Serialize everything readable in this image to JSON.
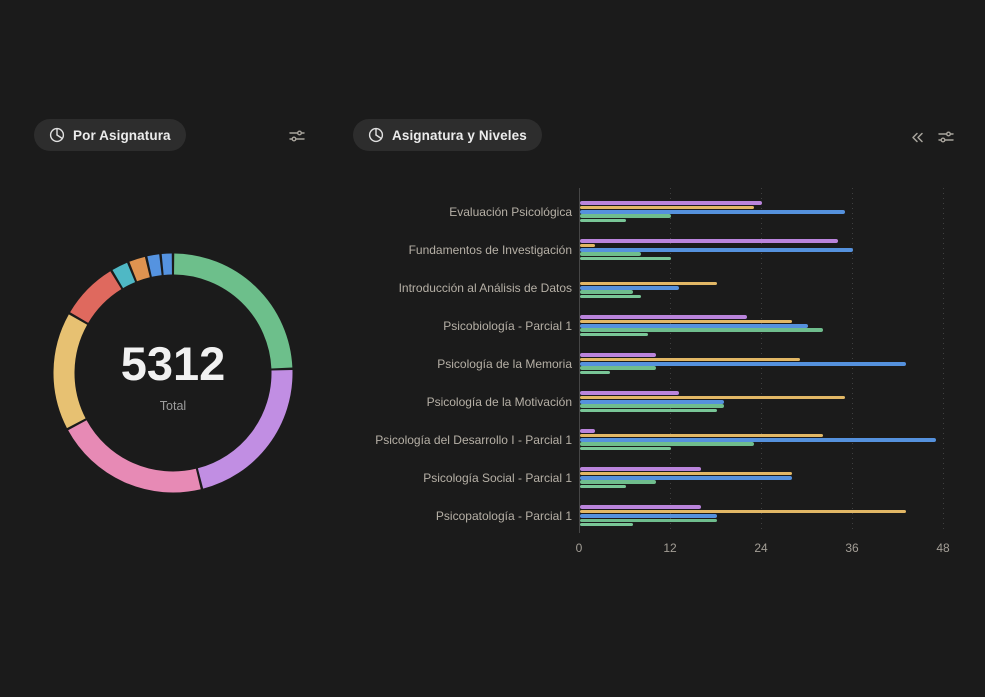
{
  "colors": {
    "background": "#1b1b1b",
    "pill_background": "#2d2d2d",
    "icon_gray": "#a8a8a8",
    "axis_line": "#464646",
    "category_label": "#b6b0a6",
    "tick_label": "#a39e96"
  },
  "icons": {
    "left_panel": [
      "pie-chart-icon",
      "sliders-icon"
    ],
    "right_panel": [
      "pie-chart-icon",
      "chevrons-left-icon",
      "sliders-icon"
    ]
  },
  "chart_data": [
    {
      "type": "donut",
      "title": "Por Asignatura",
      "total_value": "5312",
      "total_label": "Total",
      "start_angle_deg": 0,
      "direction": "clockwise",
      "segments": [
        {
          "name": "segment-green",
          "color": "#6dbf8b",
          "value": 1298
        },
        {
          "name": "segment-purple",
          "color": "#c18ee3",
          "value": 1151
        },
        {
          "name": "segment-pink",
          "color": "#e78ab5",
          "value": 1121
        },
        {
          "name": "segment-yellow",
          "color": "#e7c172",
          "value": 856
        },
        {
          "name": "segment-red",
          "color": "#df695e",
          "value": 428
        },
        {
          "name": "segment-teal",
          "color": "#4fb8c5",
          "value": 133
        },
        {
          "name": "segment-orange",
          "color": "#df9350",
          "value": 133
        },
        {
          "name": "segment-blue-1",
          "color": "#5593e0",
          "value": 103
        },
        {
          "name": "segment-blue-2",
          "color": "#5593e0",
          "value": 89
        }
      ]
    },
    {
      "type": "bar",
      "title": "Asignatura y Niveles",
      "orientation": "horizontal",
      "legend": "none",
      "grid": "dotted-vertical",
      "xlim": [
        0,
        48
      ],
      "xticks": [
        0,
        12,
        24,
        36,
        48
      ],
      "categories": [
        "Evaluación Psicológica",
        "Fundamentos de Investigación",
        "Introducción al Análisis de Datos",
        "Psicobiología - Parcial 1",
        "Psicología de la Memoria",
        "Psicología de la Motivación",
        "Psicología del Desarrollo I - Parcial 1",
        "Psicología Social - Parcial 1",
        "Psicopatología - Parcial 1"
      ],
      "series": [
        {
          "name": "series-purple",
          "color": "#ba84dc",
          "values": [
            24,
            34,
            0,
            22,
            10,
            13,
            2,
            16,
            16
          ]
        },
        {
          "name": "series-yellow",
          "color": "#e2b765",
          "values": [
            23,
            2,
            18,
            28,
            29,
            35,
            32,
            28,
            43
          ]
        },
        {
          "name": "series-blue",
          "color": "#5591dd",
          "values": [
            35,
            36,
            13,
            30,
            43,
            19,
            47,
            28,
            18
          ]
        },
        {
          "name": "series-green",
          "color": "#6fbd8d",
          "values": [
            12,
            8,
            7,
            32,
            10,
            19,
            23,
            10,
            18
          ]
        },
        {
          "name": "series-green-light",
          "color": "#79c697",
          "values": [
            6,
            12,
            8,
            9,
            4,
            18,
            12,
            6,
            7
          ]
        }
      ]
    }
  ]
}
